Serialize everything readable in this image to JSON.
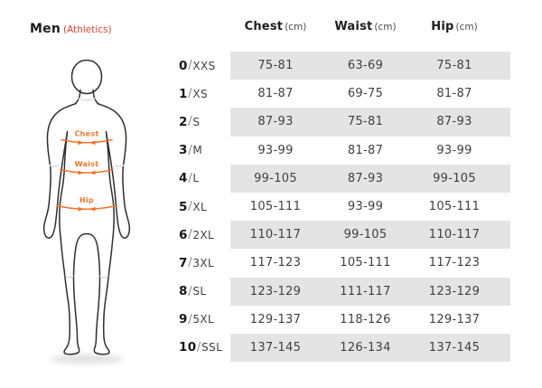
{
  "title": {
    "main": "Men",
    "sub": "(Athletics)"
  },
  "colors": {
    "accent_red": "#e8402f",
    "accent_orange": "#f0742a",
    "row_shade": "#e4e4e4",
    "figure_stroke": "#2e2e2e",
    "crease_gray": "#dcdcdc",
    "text_dark": "#1d1d1d",
    "text_body": "#3f3f3f"
  },
  "figure": {
    "labels": {
      "chest": "Chest",
      "waist": "Waist",
      "hip": "Hip"
    }
  },
  "table": {
    "size_separator": "/",
    "headers": [
      {
        "label": "Chest",
        "unit": "(cm)"
      },
      {
        "label": "Waist",
        "unit": "(cm)"
      },
      {
        "label": "Hip",
        "unit": "(cm)"
      }
    ],
    "rows": [
      {
        "size_num": "0",
        "size_suffix": "XXS",
        "chest": "75-81",
        "waist": "63-69",
        "hip": "75-81",
        "shaded": true
      },
      {
        "size_num": "1",
        "size_suffix": "XS",
        "chest": "81-87",
        "waist": "69-75",
        "hip": "81-87",
        "shaded": false
      },
      {
        "size_num": "2",
        "size_suffix": "S",
        "chest": "87-93",
        "waist": "75-81",
        "hip": "87-93",
        "shaded": true
      },
      {
        "size_num": "3",
        "size_suffix": "M",
        "chest": "93-99",
        "waist": "81-87",
        "hip": "93-99",
        "shaded": false
      },
      {
        "size_num": "4",
        "size_suffix": "L",
        "chest": "99-105",
        "waist": "87-93",
        "hip": "99-105",
        "shaded": true
      },
      {
        "size_num": "5",
        "size_suffix": "XL",
        "chest": "105-111",
        "waist": "93-99",
        "hip": "105-111",
        "shaded": false
      },
      {
        "size_num": "6",
        "size_suffix": "2XL",
        "chest": "110-117",
        "waist": "99-105",
        "hip": "110-117",
        "shaded": true
      },
      {
        "size_num": "7",
        "size_suffix": "3XL",
        "chest": "117-123",
        "waist": "105-111",
        "hip": "117-123",
        "shaded": false
      },
      {
        "size_num": "8",
        "size_suffix": "SL",
        "chest": "123-129",
        "waist": "111-117",
        "hip": "123-129",
        "shaded": true
      },
      {
        "size_num": "9",
        "size_suffix": "5XL",
        "chest": "129-137",
        "waist": "118-126",
        "hip": "129-137",
        "shaded": false
      },
      {
        "size_num": "10",
        "size_suffix": "SSL",
        "chest": "137-145",
        "waist": "126-134",
        "hip": "137-145",
        "shaded": true
      }
    ]
  }
}
